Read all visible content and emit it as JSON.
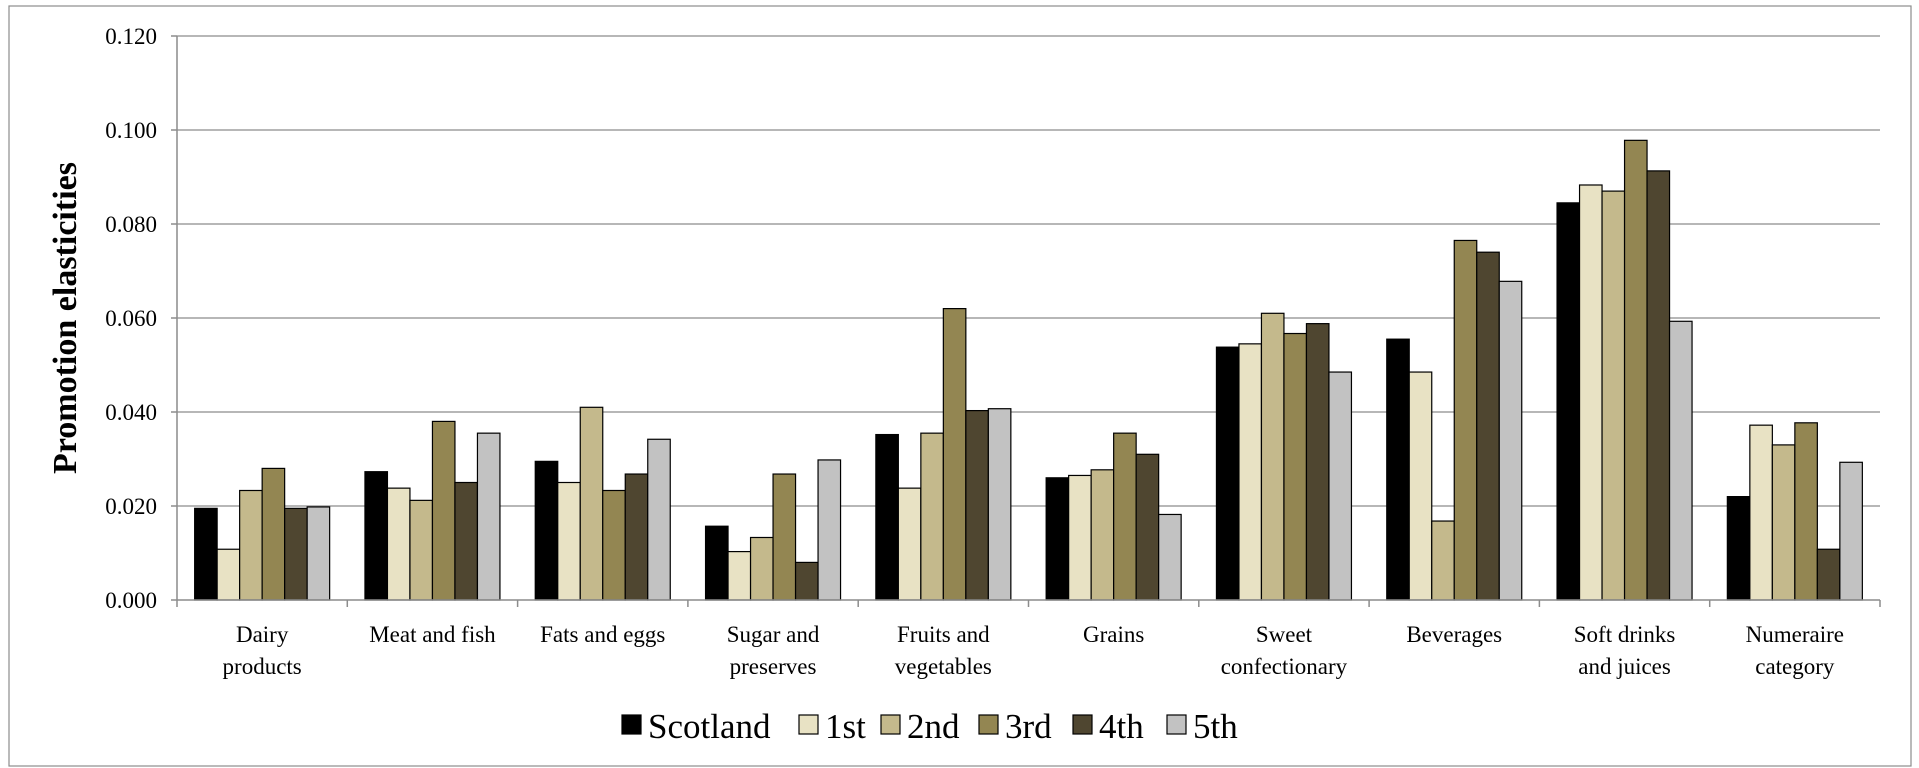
{
  "chart_data": {
    "type": "bar",
    "title": "",
    "xlabel": "",
    "ylabel": "Promotion elasticities",
    "ylim": [
      0,
      0.12
    ],
    "yticks": [
      "0.000",
      "0.020",
      "0.040",
      "0.060",
      "0.080",
      "0.100",
      "0.120"
    ],
    "grid": true,
    "legend_position": "bottom",
    "categories": [
      [
        "Dairy",
        "products"
      ],
      [
        "Meat and fish"
      ],
      [
        "Fats and eggs"
      ],
      [
        "Sugar and",
        "preserves"
      ],
      [
        "Fruits and",
        "vegetables"
      ],
      [
        "Grains"
      ],
      [
        "Sweet",
        "confectionary"
      ],
      [
        "Beverages"
      ],
      [
        "Soft drinks",
        "and juices"
      ],
      [
        "Numeraire",
        "category"
      ]
    ],
    "series": [
      {
        "name": "Scotland",
        "color": "#000000",
        "values": [
          0.0195,
          0.0273,
          0.0295,
          0.0157,
          0.0352,
          0.026,
          0.0538,
          0.0555,
          0.0845,
          0.022
        ]
      },
      {
        "name": "1st",
        "color": "#e8e2c4",
        "values": [
          0.0108,
          0.0238,
          0.025,
          0.0103,
          0.0238,
          0.0265,
          0.0545,
          0.0485,
          0.0883,
          0.0372
        ]
      },
      {
        "name": "2nd",
        "color": "#c4b98c",
        "values": [
          0.0233,
          0.0212,
          0.041,
          0.0133,
          0.0355,
          0.0277,
          0.061,
          0.0168,
          0.087,
          0.033
        ]
      },
      {
        "name": "3rd",
        "color": "#938652",
        "values": [
          0.028,
          0.038,
          0.0233,
          0.0268,
          0.062,
          0.0355,
          0.0567,
          0.0765,
          0.0978,
          0.0377
        ]
      },
      {
        "name": "4th",
        "color": "#4f4630",
        "values": [
          0.0195,
          0.025,
          0.0268,
          0.008,
          0.0403,
          0.031,
          0.0588,
          0.074,
          0.0913,
          0.0108
        ]
      },
      {
        "name": "5th",
        "color": "#c2c2c2",
        "values": [
          0.0198,
          0.0355,
          0.0342,
          0.0298,
          0.0407,
          0.0182,
          0.0485,
          0.0678,
          0.0593,
          0.0293
        ]
      }
    ]
  }
}
